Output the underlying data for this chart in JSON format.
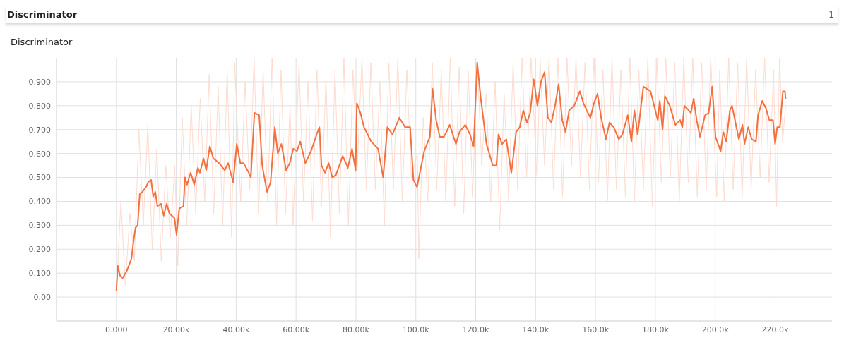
{
  "chart_data": {
    "type": "line",
    "title": "Discriminator",
    "subtitle": "Discriminator",
    "annotations": [
      "1"
    ],
    "xlim": [
      -20000,
      239000
    ],
    "ylim": [
      -0.1,
      1.0
    ],
    "xticks": [
      {
        "value": 0,
        "label": "0.000"
      },
      {
        "value": 20000,
        "label": "20.00k"
      },
      {
        "value": 40000,
        "label": "40.00k"
      },
      {
        "value": 60000,
        "label": "60.00k"
      },
      {
        "value": 80000,
        "label": "80.00k"
      },
      {
        "value": 100000,
        "label": "100.0k"
      },
      {
        "value": 120000,
        "label": "120.0k"
      },
      {
        "value": 140000,
        "label": "140.0k"
      },
      {
        "value": 160000,
        "label": "160.0k"
      },
      {
        "value": 180000,
        "label": "180.0k"
      },
      {
        "value": 200000,
        "label": "200.0k"
      },
      {
        "value": 220000,
        "label": "220.0k"
      }
    ],
    "yticks": [
      {
        "value": 0,
        "label": "0.00"
      },
      {
        "value": 0.1,
        "label": "0.100"
      },
      {
        "value": 0.2,
        "label": "0.200"
      },
      {
        "value": 0.3,
        "label": "0.300"
      },
      {
        "value": 0.4,
        "label": "0.400"
      },
      {
        "value": 0.5,
        "label": "0.500"
      },
      {
        "value": 0.6,
        "label": "0.600"
      },
      {
        "value": 0.7,
        "label": "0.700"
      },
      {
        "value": 0.8,
        "label": "0.800"
      },
      {
        "value": 0.9,
        "label": "0.900"
      }
    ],
    "grid": true,
    "marker": "none",
    "line_style": "solid",
    "series": [
      {
        "color": "#fddbd0",
        "x": [
          0,
          1500,
          3000,
          4500,
          6000,
          7500,
          9000,
          10500,
          12000,
          13500,
          15000,
          16500,
          18000,
          19500,
          20500,
          22000,
          23500,
          25000,
          26500,
          28000,
          29500,
          31000,
          32500,
          34000,
          35500,
          37000,
          38500,
          39500,
          41500,
          43000,
          44500,
          46000,
          47500,
          49000,
          50500,
          52000,
          53500,
          55000,
          56500,
          58000,
          59000,
          61000,
          62500,
          64000,
          65500,
          67000,
          68500,
          70000,
          71500,
          73000,
          74500,
          76000,
          77500,
          79000,
          80500,
          82000,
          83500,
          85000,
          86500,
          88000,
          89500,
          91000,
          92500,
          94000,
          95500,
          97000,
          98500,
          100500,
          101000,
          102500,
          104000,
          105500,
          107000,
          108500,
          110000,
          111500,
          113000,
          114500,
          116000,
          117500,
          119000,
          120500,
          122000,
          123500,
          125000,
          126500,
          128000,
          129500,
          131000,
          132500,
          134000,
          135500,
          137000,
          138500,
          140500,
          141500,
          143000,
          144500,
          146000,
          147500,
          149000,
          150500,
          152000,
          153500,
          155000,
          156500,
          158000,
          159500,
          161000,
          162500,
          164000,
          165500,
          167000,
          168500,
          170000,
          171500,
          173000,
          174500,
          176000,
          177500,
          179000,
          180500,
          182000,
          183500,
          185000,
          186500,
          188000,
          189500,
          191000,
          192500,
          194000,
          195500,
          197000,
          198500,
          200500,
          201500,
          203000,
          204500,
          206000,
          207500,
          209000,
          210500,
          212000,
          213500,
          215000,
          216500,
          218000,
          219500,
          220500,
          221500,
          222500,
          223500
        ],
        "values": [
          0.02,
          0.4,
          0.05,
          0.35,
          0.15,
          0.7,
          0.3,
          0.72,
          0.2,
          0.62,
          0.15,
          0.55,
          0.25,
          0.55,
          0.13,
          0.75,
          0.3,
          0.8,
          0.35,
          0.83,
          0.4,
          0.93,
          0.35,
          0.88,
          0.3,
          0.95,
          0.25,
          0.98,
          0.4,
          0.9,
          0.45,
          1.0,
          0.35,
          0.95,
          0.4,
          1.0,
          0.3,
          0.95,
          0.35,
          0.8,
          0.3,
          0.98,
          0.4,
          0.9,
          0.32,
          0.95,
          0.38,
          0.92,
          0.25,
          0.95,
          0.35,
          1.0,
          0.3,
          0.95,
          0.55,
          1.0,
          0.45,
          0.98,
          0.45,
          0.9,
          0.3,
          0.98,
          0.45,
          1.0,
          0.4,
          0.95,
          0.5,
          0.6,
          0.16,
          0.75,
          0.4,
          0.98,
          0.45,
          0.95,
          0.4,
          1.0,
          0.38,
          0.96,
          0.35,
          0.95,
          0.42,
          1.0,
          0.55,
          0.85,
          0.4,
          0.9,
          0.28,
          0.85,
          0.4,
          0.98,
          0.45,
          1.0,
          0.5,
          1.0,
          0.48,
          1.0,
          0.55,
          1.0,
          0.45,
          1.0,
          0.42,
          1.0,
          0.55,
          1.0,
          0.5,
          0.98,
          0.45,
          1.0,
          0.48,
          0.95,
          0.4,
          1.0,
          0.45,
          0.95,
          0.42,
          1.0,
          0.4,
          0.95,
          0.45,
          1.0,
          0.38,
          1.0,
          0.48,
          1.0,
          0.5,
          0.98,
          0.4,
          1.0,
          0.48,
          1.0,
          0.42,
          0.98,
          0.45,
          1.0,
          0.42,
          0.95,
          0.4,
          1.0,
          0.45,
          0.98,
          0.42,
          1.0,
          0.45,
          0.95,
          0.5,
          1.0,
          0.48,
          0.95,
          0.38,
          1.0,
          0.65,
          0.8
        ]
      },
      {
        "color": "#f4703f",
        "x": [
          0,
          500,
          1200,
          2100,
          3500,
          5000,
          5900,
          6400,
          7100,
          7800,
          8700,
          9900,
          10600,
          11600,
          12300,
          13000,
          13700,
          14900,
          15800,
          16800,
          17700,
          19400,
          20100,
          21000,
          22400,
          22900,
          23600,
          24800,
          26000,
          27200,
          27900,
          29100,
          30000,
          31200,
          32400,
          34300,
          36200,
          37300,
          39000,
          40200,
          41400,
          42500,
          44200,
          44900,
          46100,
          47700,
          48700,
          50300,
          51500,
          52900,
          53900,
          55100,
          56700,
          57900,
          59100,
          60300,
          61400,
          63100,
          65000,
          66900,
          67800,
          68500,
          69700,
          70900,
          72100,
          73300,
          75600,
          77300,
          78700,
          79900,
          80300,
          81500,
          82700,
          85100,
          87400,
          89100,
          90500,
          92200,
          94500,
          96400,
          98100,
          99200,
          100400,
          102800,
          104700,
          105600,
          106800,
          108000,
          109400,
          110600,
          111300,
          113400,
          114600,
          116500,
          118100,
          119300,
          120500,
          121700,
          123600,
          125700,
          126900,
          127600,
          128800,
          130200,
          131900,
          132300,
          133500,
          134700,
          135900,
          137100,
          138200,
          139400,
          140600,
          141800,
          143000,
          144100,
          145300,
          146500,
          147700,
          148900,
          150000,
          151200,
          152900,
          154800,
          156000,
          157100,
          158300,
          159500,
          160700,
          161900,
          163500,
          164700,
          166100,
          167800,
          169000,
          170800,
          172000,
          173000,
          174100,
          176000,
          177200,
          178400,
          179600,
          180800,
          181500,
          182400,
          183200,
          184800,
          186700,
          188300,
          189000,
          189700,
          191900,
          192800,
          193800,
          194900,
          196600,
          197800,
          199000,
          200100,
          201800,
          202700,
          203700,
          204900,
          205600,
          207900,
          209100,
          209800,
          211000,
          212200,
          213600,
          214300,
          215700,
          216900,
          218100,
          219300,
          220000,
          220700,
          221600,
          222600,
          223300,
          223500
        ],
        "values": [
          0.03,
          0.13,
          0.09,
          0.08,
          0.11,
          0.16,
          0.25,
          0.29,
          0.3,
          0.43,
          0.44,
          0.46,
          0.48,
          0.49,
          0.42,
          0.44,
          0.38,
          0.39,
          0.34,
          0.39,
          0.35,
          0.33,
          0.26,
          0.37,
          0.38,
          0.5,
          0.47,
          0.52,
          0.47,
          0.54,
          0.52,
          0.58,
          0.53,
          0.63,
          0.58,
          0.56,
          0.53,
          0.56,
          0.48,
          0.64,
          0.56,
          0.56,
          0.52,
          0.5,
          0.77,
          0.76,
          0.55,
          0.44,
          0.48,
          0.71,
          0.6,
          0.64,
          0.53,
          0.56,
          0.62,
          0.61,
          0.65,
          0.56,
          0.61,
          0.68,
          0.71,
          0.55,
          0.52,
          0.56,
          0.5,
          0.51,
          0.59,
          0.54,
          0.62,
          0.53,
          0.81,
          0.77,
          0.71,
          0.65,
          0.62,
          0.5,
          0.71,
          0.68,
          0.75,
          0.71,
          0.71,
          0.49,
          0.46,
          0.61,
          0.67,
          0.87,
          0.74,
          0.67,
          0.67,
          0.7,
          0.72,
          0.64,
          0.69,
          0.72,
          0.68,
          0.63,
          0.98,
          0.83,
          0.64,
          0.55,
          0.55,
          0.68,
          0.64,
          0.66,
          0.52,
          0.56,
          0.69,
          0.71,
          0.78,
          0.73,
          0.77,
          0.91,
          0.8,
          0.9,
          0.94,
          0.75,
          0.73,
          0.8,
          0.89,
          0.74,
          0.69,
          0.78,
          0.8,
          0.86,
          0.81,
          0.78,
          0.75,
          0.81,
          0.85,
          0.75,
          0.66,
          0.73,
          0.71,
          0.66,
          0.68,
          0.76,
          0.65,
          0.78,
          0.68,
          0.88,
          0.87,
          0.86,
          0.8,
          0.74,
          0.82,
          0.7,
          0.84,
          0.8,
          0.72,
          0.74,
          0.71,
          0.8,
          0.77,
          0.83,
          0.74,
          0.67,
          0.76,
          0.77,
          0.88,
          0.67,
          0.61,
          0.69,
          0.65,
          0.78,
          0.8,
          0.66,
          0.72,
          0.64,
          0.71,
          0.66,
          0.65,
          0.76,
          0.82,
          0.79,
          0.74,
          0.74,
          0.64,
          0.71,
          0.71,
          0.86,
          0.86,
          0.83
        ]
      }
    ]
  }
}
